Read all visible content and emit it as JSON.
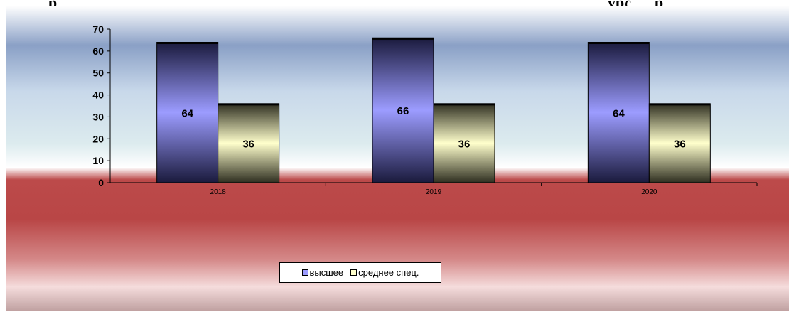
{
  "chart_data": {
    "type": "bar",
    "title_fragment_left": "р",
    "title_fragment_right": "урс      р",
    "categories": [
      "2018",
      "2019",
      "2020"
    ],
    "series": [
      {
        "name": "высшее",
        "values": [
          64,
          66,
          64
        ],
        "color": "#9c9cff"
      },
      {
        "name": "среднее спец.",
        "values": [
          36,
          36,
          36
        ],
        "color": "#ffffcc"
      }
    ],
    "ylim": [
      0,
      70
    ],
    "yticks": [
      "0",
      "10",
      "20",
      "30",
      "40",
      "50",
      "60",
      "70"
    ],
    "xlabel": "",
    "ylabel": "",
    "grid": false,
    "legend_position": "bottom-center",
    "data_labels": true
  }
}
